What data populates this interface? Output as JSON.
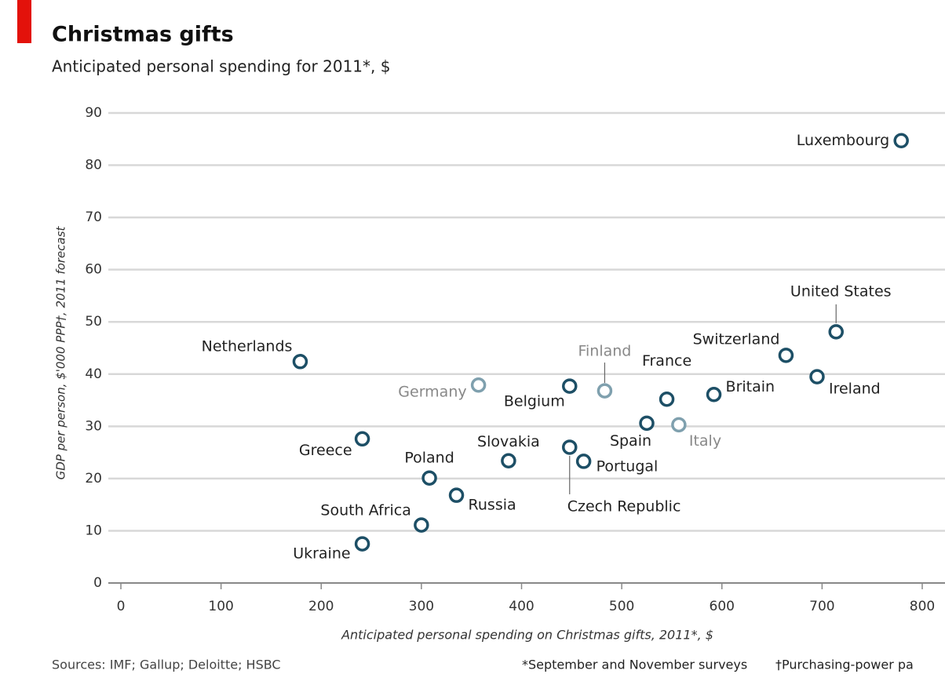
{
  "chart_data": {
    "type": "scatter",
    "title": "Christmas gifts",
    "subtitle": "Anticipated personal spending for 2011*, $",
    "xlabel": "Anticipated personal spending on Christmas gifts, 2011*, $",
    "ylabel": "GDP per person, $'000 PPP†, 2011 forecast",
    "source": "Sources: IMF; Gallup; Deloitte; HSBC",
    "notes": [
      "*September and November surveys",
      "†Purchasing-power pa"
    ],
    "labels": [
      "Luxembourg",
      "United States",
      "Switzerland",
      "Ireland",
      "Britain",
      "France",
      "Finland",
      "Belgium",
      "Italy",
      "Spain",
      "Portugal",
      "Czech Republic",
      "Slovakia",
      "Germany",
      "Netherlands",
      "Greece",
      "Poland",
      "Russia",
      "South Africa",
      "Ukraine"
    ],
    "x": [
      779,
      714,
      664,
      695,
      592,
      545,
      483,
      448,
      557,
      525,
      462,
      448,
      387,
      357,
      179,
      241,
      308,
      335,
      300,
      241
    ],
    "y": [
      84.7,
      48.1,
      43.6,
      39.5,
      36.1,
      35.2,
      36.8,
      37.7,
      30.3,
      30.6,
      23.3,
      26.0,
      23.4,
      37.9,
      42.4,
      27.6,
      20.1,
      16.8,
      11.1,
      7.5
    ],
    "colors": [
      "#1d4f66",
      "#1d4f66",
      "#1d4f66",
      "#1d4f66",
      "#1d4f66",
      "#1d4f66",
      "#7fa0ae",
      "#1d4f66",
      "#7fa0ae",
      "#1d4f66",
      "#1d4f66",
      "#1d4f66",
      "#1d4f66",
      "#7fa0ae",
      "#1d4f66",
      "#1d4f66",
      "#1d4f66",
      "#1d4f66",
      "#1d4f66",
      "#1d4f66"
    ],
    "xlim": [
      0,
      800
    ],
    "xticks": [
      0,
      100,
      200,
      300,
      400,
      500,
      600,
      700,
      800
    ],
    "ylim": [
      0,
      90
    ],
    "yticks": [
      0,
      10,
      20,
      30,
      40,
      50,
      60,
      70,
      80,
      90
    ],
    "grid": true
  }
}
